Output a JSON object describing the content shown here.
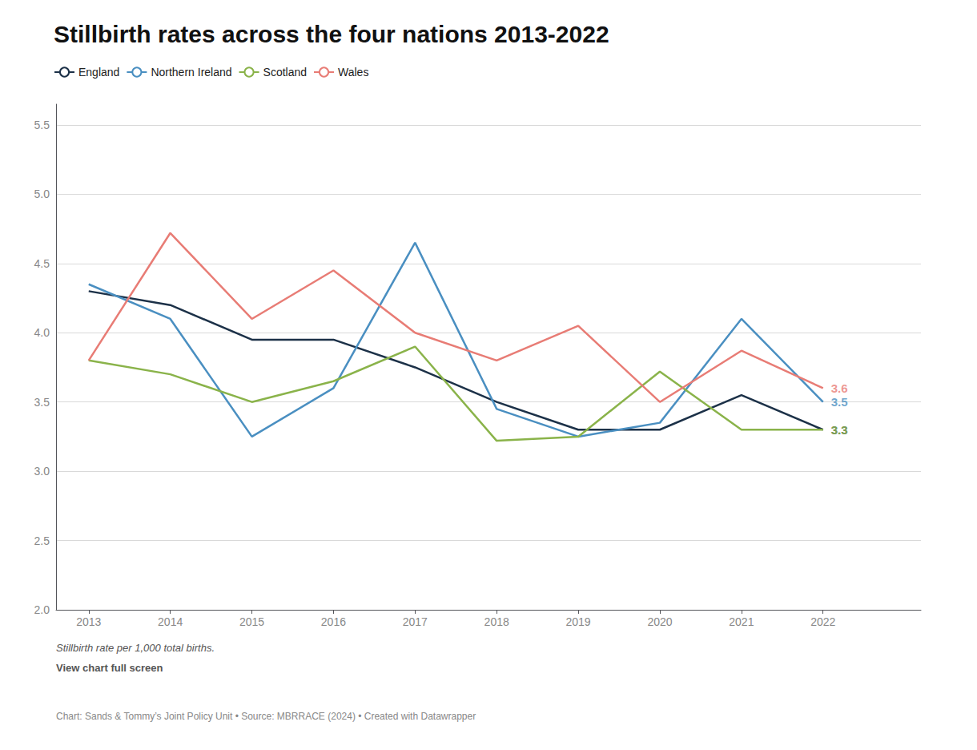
{
  "chart_data": {
    "type": "line",
    "title": "Stillbirth rates across the four nations 2013-2022",
    "x": [
      2013,
      2014,
      2015,
      2016,
      2017,
      2018,
      2019,
      2020,
      2021,
      2022
    ],
    "series": [
      {
        "name": "England",
        "color": "#1c3148",
        "values": [
          4.3,
          4.2,
          3.95,
          3.95,
          3.75,
          3.5,
          3.3,
          3.3,
          3.55,
          3.3
        ]
      },
      {
        "name": "Northern Ireland",
        "color": "#4a8fc1",
        "values": [
          4.35,
          4.1,
          3.25,
          3.6,
          4.65,
          3.45,
          3.25,
          3.35,
          4.1,
          3.5
        ]
      },
      {
        "name": "Scotland",
        "color": "#8ab34a",
        "values": [
          3.8,
          3.7,
          3.5,
          3.65,
          3.9,
          3.22,
          3.25,
          3.72,
          3.3,
          3.3
        ]
      },
      {
        "name": "Wales",
        "color": "#e87c75",
        "values": [
          3.8,
          4.72,
          4.1,
          4.45,
          4.0,
          3.8,
          4.05,
          3.5,
          3.87,
          3.6
        ]
      }
    ],
    "xlim": [
      2012.6,
      2023.2
    ],
    "xticks": [
      2013,
      2014,
      2015,
      2016,
      2017,
      2018,
      2019,
      2020,
      2021,
      2022
    ],
    "ylim": [
      2.0,
      5.65
    ],
    "yticks": [
      {
        "value": 2.0,
        "label": "2.0"
      },
      2.5,
      {
        "value": 3.0,
        "label": "3.0"
      },
      3.5,
      {
        "value": 4.0,
        "label": "4.0"
      },
      4.5,
      {
        "value": 5.0,
        "label": "5.0"
      },
      5.5
    ],
    "grid": true,
    "legend": "top-left",
    "annotations": [
      {
        "text": "3.6",
        "x": 2022,
        "y": 3.6,
        "color": "#e87c75"
      },
      {
        "text": "3.5",
        "x": 2022,
        "y": 3.5,
        "color": "#4a8fc1"
      },
      {
        "text": "3.3",
        "x": 2022,
        "y": 3.3,
        "color": "#1c3148"
      },
      {
        "text": "3.3",
        "x": 2022,
        "y": 3.3,
        "color": "#8ab34a"
      }
    ],
    "notes": [
      "Stillbirth rate per 1,000 total births.",
      "View chart full screen"
    ],
    "source": "Chart: Sands & Tommy’s Joint Policy Unit • Source: MBRRACE (2024) • Created with Datawrapper"
  }
}
